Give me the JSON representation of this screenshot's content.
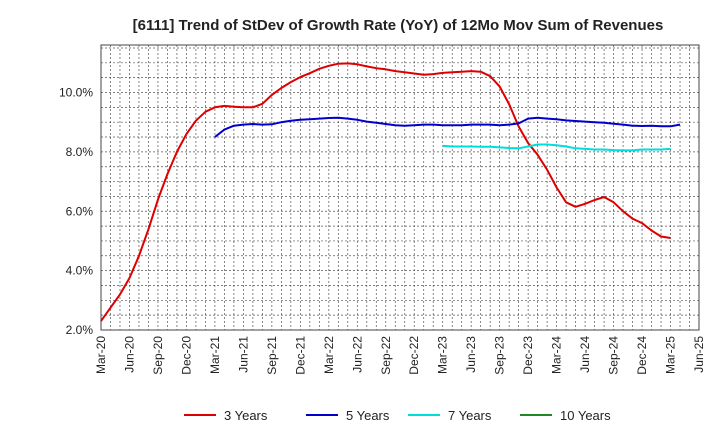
{
  "chart_data": {
    "type": "line",
    "title": "[6111]  Trend of StDev of Growth Rate (YoY) of 12Mo Mov Sum of Revenues",
    "xlabel": "",
    "ylabel": "",
    "x_ticks": [
      "Mar-20",
      "Jun-20",
      "Sep-20",
      "Dec-20",
      "Mar-21",
      "Jun-21",
      "Sep-21",
      "Dec-21",
      "Mar-22",
      "Jun-22",
      "Sep-22",
      "Dec-22",
      "Mar-23",
      "Jun-23",
      "Sep-23",
      "Dec-23",
      "Mar-24",
      "Jun-24",
      "Sep-24",
      "Dec-24",
      "Mar-25",
      "Jun-25"
    ],
    "y_ticks": [
      "2.0%",
      "4.0%",
      "6.0%",
      "8.0%",
      "10.0%"
    ],
    "ylim": [
      2.0,
      11.6
    ],
    "x_start": "Mar-20",
    "series": [
      {
        "name": "3 Years",
        "color": "#dd0000",
        "start_index": 0,
        "values": [
          2.3,
          2.75,
          3.2,
          3.75,
          4.5,
          5.4,
          6.4,
          7.25,
          8.0,
          8.6,
          9.05,
          9.35,
          9.5,
          9.55,
          9.52,
          9.5,
          9.5,
          9.62,
          9.92,
          10.15,
          10.35,
          10.52,
          10.65,
          10.8,
          10.9,
          10.97,
          10.98,
          10.95,
          10.88,
          10.82,
          10.78,
          10.72,
          10.68,
          10.64,
          10.6,
          10.62,
          10.66,
          10.68,
          10.7,
          10.72,
          10.7,
          10.55,
          10.2,
          9.6,
          8.85,
          8.3,
          7.9,
          7.4,
          6.8,
          6.3,
          6.15,
          6.25,
          6.38,
          6.48,
          6.3,
          6.0,
          5.75,
          5.6,
          5.35,
          5.15,
          5.1
        ]
      },
      {
        "name": "5 Years",
        "color": "#0000cc",
        "start_index": 12,
        "values": [
          8.5,
          8.75,
          8.88,
          8.92,
          8.94,
          8.92,
          8.93,
          9.0,
          9.05,
          9.08,
          9.1,
          9.12,
          9.14,
          9.15,
          9.12,
          9.08,
          9.02,
          8.98,
          8.94,
          8.9,
          8.88,
          8.9,
          8.92,
          8.92,
          8.9,
          8.9,
          8.9,
          8.92,
          8.92,
          8.92,
          8.9,
          8.92,
          8.96,
          9.12,
          9.15,
          9.12,
          9.1,
          9.06,
          9.04,
          9.02,
          9.0,
          8.98,
          8.95,
          8.92,
          8.88,
          8.87,
          8.88,
          8.86,
          8.86,
          8.92
        ]
      },
      {
        "name": "7 Years",
        "color": "#00dddd",
        "start_index": 36,
        "values": [
          8.2,
          8.18,
          8.18,
          8.18,
          8.17,
          8.17,
          8.15,
          8.13,
          8.12,
          8.18,
          8.25,
          8.25,
          8.22,
          8.18,
          8.12,
          8.1,
          8.08,
          8.08,
          8.06,
          8.05,
          8.05,
          8.08,
          8.08,
          8.08,
          8.1
        ]
      },
      {
        "name": "10 Years",
        "color": "#228822",
        "start_index": 0,
        "values": []
      }
    ],
    "grid": true,
    "legend_position": "bottom"
  }
}
